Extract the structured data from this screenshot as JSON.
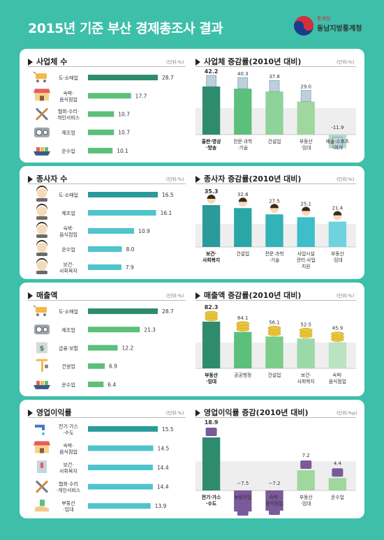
{
  "title": "2015년 기준 부산 경제총조사 결과",
  "logo": {
    "sub": "통계청",
    "main": "동남지방통계청"
  },
  "colors": {
    "background": "#3dbfaa",
    "dark_green": "#2e8b6e",
    "green": "#5cbf7a",
    "teal": "#2a9a9a",
    "light_teal": "#4fc4cc",
    "purple": "#7a5a99",
    "gold": "#e9c53a"
  },
  "sections": [
    {
      "left": {
        "title": "사업체 수",
        "unit": "(단위:%)",
        "icons": [
          "cart-icon",
          "shop-icon",
          "tools-icon",
          "gear-icon",
          "ship-icon"
        ],
        "chart_data": {
          "type": "bar",
          "categories": [
            "도·소매업",
            "숙박·\n음식점업",
            "협회·수리·\n개인서비스",
            "제조업",
            "운수업"
          ],
          "values": [
            28.7,
            17.7,
            10.7,
            10.7,
            10.1
          ],
          "colors": [
            "#2e8b6e",
            "#5cbf7a",
            "#5cbf7a",
            "#5cbf7a",
            "#5cbf7a"
          ]
        }
      },
      "right": {
        "title": "사업체 증감률(2010년 대비)",
        "unit": "(단위:%)",
        "chart_data": {
          "type": "bar",
          "categories": [
            "출판·영상\n·방송",
            "전문·과학\n·기술",
            "건설업",
            "부동산\n·임대",
            "예술·스포츠\n·여가"
          ],
          "values": [
            42.2,
            40.3,
            37.8,
            29.0,
            -11.9
          ],
          "labels": [
            "42.2",
            "40.3",
            "37.8",
            "29.0",
            "-11.9"
          ],
          "bold_first": true
        }
      }
    },
    {
      "left": {
        "title": "종사자 수",
        "unit": "(단위:%)",
        "icons": [
          "worker-icon",
          "worker-icon",
          "worker-icon",
          "worker-icon",
          "worker-icon"
        ],
        "chart_data": {
          "type": "bar",
          "categories": [
            "도·소매업",
            "제조업",
            "숙박·\n음식점업",
            "운수업",
            "보건·\n사회복지"
          ],
          "values": [
            16.5,
            16.1,
            10.9,
            8.0,
            7.9
          ],
          "colors": [
            "#2a9a9a",
            "#4fc4cc",
            "#4fc4cc",
            "#4fc4cc",
            "#4fc4cc"
          ]
        }
      },
      "right": {
        "title": "종사자 증감률(2010년 대비)",
        "unit": "(단위:%)",
        "chart_data": {
          "type": "bar",
          "categories": [
            "보건·\n사회복지",
            "건설업",
            "전문·과학\n·기술",
            "사업시설\n관리·사업\n지원",
            "부동산\n·임대"
          ],
          "values": [
            35.3,
            32.8,
            27.5,
            25.1,
            21.4
          ],
          "labels": [
            "35.3",
            "32.8",
            "27.5",
            "25.1",
            "21.4"
          ],
          "bold_first": true
        }
      }
    },
    {
      "left": {
        "title": "매출액",
        "unit": "(단위:%)",
        "icons": [
          "cart-icon",
          "gear-icon",
          "coin-icon",
          "crane-icon",
          "ship-icon"
        ],
        "chart_data": {
          "type": "bar",
          "categories": [
            "도·소매업",
            "제조업",
            "금융·보험",
            "건설업",
            "운수업"
          ],
          "values": [
            28.7,
            21.3,
            12.2,
            6.9,
            6.4
          ],
          "colors": [
            "#2e8b6e",
            "#5cbf7a",
            "#5cbf7a",
            "#5cbf7a",
            "#5cbf7a"
          ]
        }
      },
      "right": {
        "title": "매출액 증감률(2010년 대비)",
        "unit": "(단위:%)",
        "chart_data": {
          "type": "bar",
          "categories": [
            "부동산\n·임대",
            "공공행정",
            "건설업",
            "보건·\n사회복지",
            "숙박·\n음식점업"
          ],
          "values": [
            82.3,
            64.1,
            56.1,
            52.5,
            45.9
          ],
          "labels": [
            "82.3",
            "64.1",
            "56.1",
            "52.5",
            "45.9"
          ],
          "bold_first": true
        }
      }
    },
    {
      "left": {
        "title": "영업이익률",
        "unit": "(단위:%)",
        "icons": [
          "faucet-icon",
          "shop-icon",
          "building-icon",
          "tools-icon",
          "hand-icon"
        ],
        "chart_data": {
          "type": "bar",
          "categories": [
            "전기·가스\n·수도",
            "숙박·\n음식점업",
            "보건·\n사회복지",
            "협회·수리\n·개인서비스",
            "부동산\n·임대"
          ],
          "values": [
            15.5,
            14.5,
            14.4,
            14.4,
            13.9
          ],
          "colors": [
            "#2a9a9a",
            "#4fc4cc",
            "#4fc4cc",
            "#4fc4cc",
            "#4fc4cc"
          ]
        }
      },
      "right": {
        "title": "영업이익률 증감(2010년 대비)",
        "unit": "(단위:%p)",
        "chart_data": {
          "type": "bar",
          "categories": [
            "전기·가스\n·수도",
            "농림어업",
            "숙박·\n음식점업",
            "부동산\n·임대",
            "운수업"
          ],
          "values": [
            18.9,
            -7.5,
            -7.2,
            7.2,
            4.4
          ],
          "labels": [
            "18.9",
            "−7.5",
            "−7.2",
            "7.2",
            "4.4"
          ],
          "bold_first": true
        }
      }
    }
  ]
}
